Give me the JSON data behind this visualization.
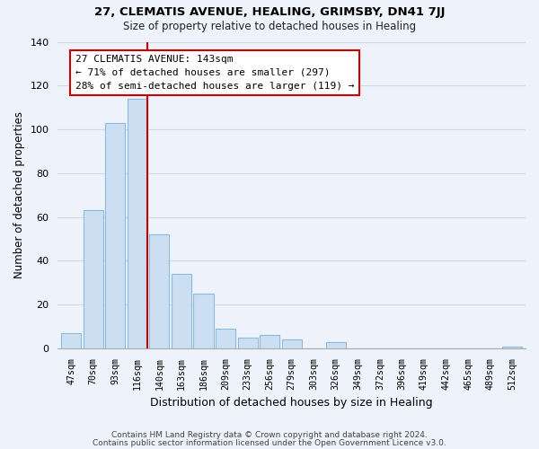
{
  "title": "27, CLEMATIS AVENUE, HEALING, GRIMSBY, DN41 7JJ",
  "subtitle": "Size of property relative to detached houses in Healing",
  "xlabel": "Distribution of detached houses by size in Healing",
  "ylabel": "Number of detached properties",
  "bar_labels": [
    "47sqm",
    "70sqm",
    "93sqm",
    "116sqm",
    "140sqm",
    "163sqm",
    "186sqm",
    "209sqm",
    "233sqm",
    "256sqm",
    "279sqm",
    "303sqm",
    "326sqm",
    "349sqm",
    "372sqm",
    "396sqm",
    "419sqm",
    "442sqm",
    "465sqm",
    "489sqm",
    "512sqm"
  ],
  "bar_values": [
    7,
    63,
    103,
    114,
    52,
    34,
    25,
    9,
    5,
    6,
    4,
    0,
    3,
    0,
    0,
    0,
    0,
    0,
    0,
    0,
    1
  ],
  "bar_color": "#ccdff2",
  "bar_edge_color": "#88bbdd",
  "vline_color": "#cc0000",
  "annotation_title": "27 CLEMATIS AVENUE: 143sqm",
  "annotation_line1": "← 71% of detached houses are smaller (297)",
  "annotation_line2": "28% of semi-detached houses are larger (119) →",
  "annotation_box_facecolor": "#ffffff",
  "annotation_box_edgecolor": "#cc0000",
  "ylim": [
    0,
    140
  ],
  "yticks": [
    0,
    20,
    40,
    60,
    80,
    100,
    120,
    140
  ],
  "footnote1": "Contains HM Land Registry data © Crown copyright and database right 2024.",
  "footnote2": "Contains public sector information licensed under the Open Government Licence v3.0.",
  "background_color": "#eef2fa",
  "grid_color": "#d0d8e8"
}
